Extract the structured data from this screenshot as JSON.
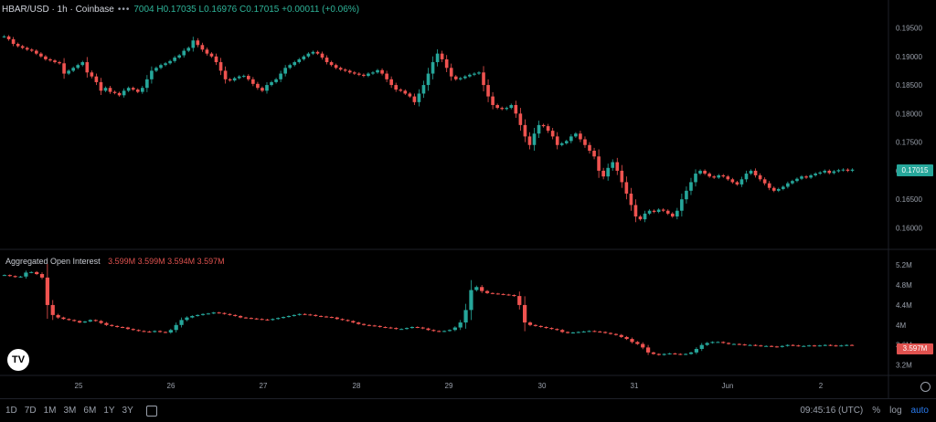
{
  "header": {
    "symbol": "HBAR/USD · 1h · Coinbase",
    "dots": "•••",
    "ohlc": "7004  H0.17035  L0.16976  C0.17015  +0.00011 (+0.06%)"
  },
  "oi_legend": {
    "title": "Aggregated Open Interest",
    "values": "3.599M  3.599M  3.594M  3.597M"
  },
  "price_label": "0.17015",
  "oi_label": "3.597M",
  "timeframes": [
    "1D",
    "7D",
    "1M",
    "3M",
    "6M",
    "1Y",
    "3Y"
  ],
  "status": {
    "time": "09:45:16 (UTC)",
    "pct": "%",
    "log": "log",
    "auto": "auto"
  },
  "colors": {
    "up": "#26a69a",
    "down": "#ef5350",
    "bg": "#000000",
    "grid": "#1e2129",
    "accent": "#2a7cf0"
  },
  "chart_data": [
    {
      "type": "candlestick",
      "title": "HBAR/USD · 1h · Coinbase",
      "x_tick_labels": [
        "25",
        "26",
        "27",
        "28",
        "29",
        "30",
        "31",
        "Jun",
        "2"
      ],
      "y_ticks": [
        0.195,
        0.19,
        0.185,
        0.18,
        0.175,
        0.17,
        0.165,
        0.16
      ],
      "y_tick_labels": [
        "0.19500",
        "0.19000",
        "0.18500",
        "0.18000",
        "0.17500",
        "0.17000",
        "0.16500",
        "0.16000"
      ],
      "ylim": [
        0.158,
        0.197
      ],
      "series": [
        {
          "values": [
            0.1935,
            0.193,
            0.1922,
            0.1918,
            0.1915,
            0.1912,
            0.191,
            0.1905,
            0.19,
            0.1895,
            0.1893,
            0.189,
            0.1888,
            0.187,
            0.1875,
            0.188,
            0.1885,
            0.189,
            0.1872,
            0.1865,
            0.1855,
            0.184,
            0.1845,
            0.1838,
            0.1836,
            0.1832,
            0.184,
            0.1845,
            0.1842,
            0.1838,
            0.1845,
            0.186,
            0.1875,
            0.188,
            0.1885,
            0.1888,
            0.1892,
            0.1898,
            0.1902,
            0.191,
            0.1915,
            0.1928,
            0.192,
            0.1912,
            0.1905,
            0.19,
            0.189,
            0.1875,
            0.186,
            0.1858,
            0.1862,
            0.1865,
            0.1866,
            0.186,
            0.1852,
            0.1845,
            0.184,
            0.185,
            0.1855,
            0.186,
            0.187,
            0.188,
            0.1885,
            0.189,
            0.1895,
            0.19,
            0.1905,
            0.1908,
            0.1905,
            0.1898,
            0.189,
            0.1885,
            0.188,
            0.1877,
            0.1875,
            0.1872,
            0.187,
            0.1868,
            0.1866,
            0.187,
            0.1872,
            0.1876,
            0.187,
            0.186,
            0.185,
            0.1842,
            0.184,
            0.1835,
            0.183,
            0.182,
            0.1835,
            0.185,
            0.187,
            0.189,
            0.1905,
            0.1895,
            0.188,
            0.1865,
            0.186,
            0.1862,
            0.1865,
            0.1868,
            0.187,
            0.1872,
            0.185,
            0.183,
            0.1815,
            0.181,
            0.1808,
            0.181,
            0.1815,
            0.18,
            0.178,
            0.176,
            0.1745,
            0.1765,
            0.178,
            0.1778,
            0.177,
            0.176,
            0.1745,
            0.1748,
            0.1752,
            0.176,
            0.1765,
            0.1755,
            0.1745,
            0.1735,
            0.1725,
            0.17,
            0.169,
            0.1705,
            0.1715,
            0.17,
            0.168,
            0.166,
            0.164,
            0.162,
            0.1615,
            0.1625,
            0.163,
            0.1628,
            0.1632,
            0.163,
            0.1625,
            0.162,
            0.163,
            0.165,
            0.1665,
            0.168,
            0.1695,
            0.17,
            0.1695,
            0.169,
            0.1688,
            0.1692,
            0.169,
            0.1685,
            0.168,
            0.1676,
            0.1685,
            0.1695,
            0.17,
            0.1692,
            0.1685,
            0.1678,
            0.167,
            0.1665,
            0.1668,
            0.1672,
            0.1678,
            0.1682,
            0.1686,
            0.169,
            0.1688,
            0.1692,
            0.1695,
            0.1697,
            0.17,
            0.1696,
            0.1699,
            0.1701,
            0.1702,
            0.17,
            0.1702
          ]
        }
      ]
    },
    {
      "type": "candlestick",
      "title": "Aggregated Open Interest",
      "y_ticks": [
        5.2,
        4.8,
        4.4,
        4.0,
        3.6,
        3.2
      ],
      "y_tick_labels": [
        "5.2M",
        "4.8M",
        "4.4M",
        "4M",
        "3.6M",
        "3.2M"
      ],
      "ylim": [
        3.1,
        5.35
      ],
      "series": [
        {
          "values": [
            5.0,
            4.98,
            4.96,
            4.97,
            5.05,
            5.06,
            5.02,
            4.95,
            4.4,
            4.2,
            4.15,
            4.12,
            4.1,
            4.08,
            4.05,
            4.07,
            4.1,
            4.08,
            4.04,
            4.0,
            3.98,
            3.96,
            3.95,
            3.92,
            3.9,
            3.88,
            3.87,
            3.86,
            3.88,
            3.86,
            3.85,
            3.9,
            4.0,
            4.1,
            4.15,
            4.18,
            4.2,
            4.22,
            4.23,
            4.25,
            4.24,
            4.22,
            4.2,
            4.18,
            4.15,
            4.14,
            4.13,
            4.12,
            4.11,
            4.1,
            4.12,
            4.14,
            4.16,
            4.18,
            4.2,
            4.22,
            4.21,
            4.2,
            4.18,
            4.17,
            4.16,
            4.15,
            4.12,
            4.1,
            4.08,
            4.05,
            4.02,
            4.0,
            3.99,
            3.98,
            3.96,
            3.95,
            3.94,
            3.92,
            3.92,
            3.94,
            3.96,
            3.95,
            3.93,
            3.9,
            3.88,
            3.87,
            3.88,
            3.9,
            3.95,
            4.05,
            4.3,
            4.7,
            4.76,
            4.68,
            4.64,
            4.63,
            4.62,
            4.61,
            4.6,
            4.58,
            4.4,
            4.05,
            4.0,
            3.98,
            3.96,
            3.94,
            3.92,
            3.9,
            3.86,
            3.84,
            3.85,
            3.86,
            3.87,
            3.88,
            3.87,
            3.86,
            3.84,
            3.82,
            3.8,
            3.76,
            3.72,
            3.66,
            3.62,
            3.55,
            3.45,
            3.42,
            3.4,
            3.42,
            3.43,
            3.42,
            3.41,
            3.42,
            3.45,
            3.52,
            3.6,
            3.64,
            3.66,
            3.66,
            3.64,
            3.62,
            3.62,
            3.61,
            3.6,
            3.6,
            3.59,
            3.58,
            3.58,
            3.57,
            3.56,
            3.58,
            3.6,
            3.59,
            3.58,
            3.58,
            3.59,
            3.58,
            3.59,
            3.6,
            3.59,
            3.58,
            3.59,
            3.6,
            3.597
          ]
        }
      ]
    }
  ]
}
